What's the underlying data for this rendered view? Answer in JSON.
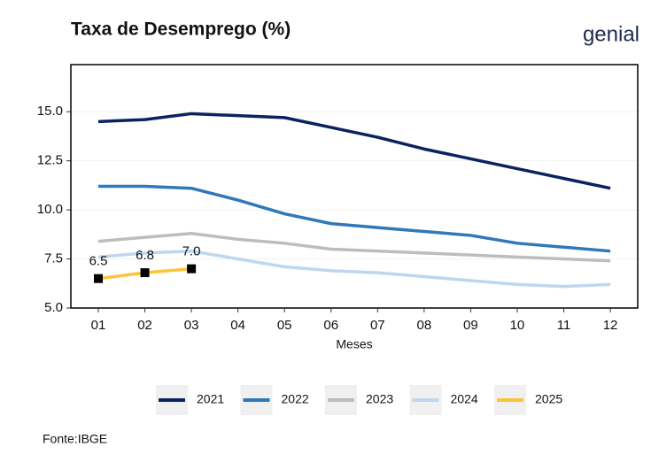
{
  "chart_data": {
    "type": "line",
    "title": "Taxa de Desemprego (%)",
    "logo": "genial",
    "x_label": "Meses",
    "source": "Fonte:IBGE",
    "categories": [
      "01",
      "02",
      "03",
      "04",
      "05",
      "06",
      "07",
      "08",
      "09",
      "10",
      "11",
      "12"
    ],
    "ylim": [
      5,
      17.4
    ],
    "yticks": [
      {
        "value": 5,
        "label": "5.0"
      },
      7.5,
      {
        "value": 10,
        "label": "10.0"
      },
      12.5,
      {
        "value": 15,
        "label": "15.0"
      }
    ],
    "grid": true,
    "legend": "bottom",
    "series": [
      {
        "name": "2021",
        "color": "#0b2260",
        "values": [
          14.5,
          14.6,
          14.9,
          14.8,
          14.7,
          14.2,
          13.7,
          13.1,
          12.6,
          12.1,
          11.6,
          11.1
        ]
      },
      {
        "name": "2022",
        "color": "#2f78b9",
        "values": [
          11.2,
          11.2,
          11.1,
          10.5,
          9.8,
          9.3,
          9.1,
          8.9,
          8.7,
          8.3,
          8.1,
          7.9
        ]
      },
      {
        "name": "2023",
        "color": "#bdbdbd",
        "values": [
          8.4,
          8.6,
          8.8,
          8.5,
          8.3,
          8.0,
          7.9,
          7.8,
          7.7,
          7.6,
          7.5,
          7.4
        ]
      },
      {
        "name": "2024",
        "color": "#bcd7ee",
        "values": [
          7.6,
          7.8,
          7.9,
          7.5,
          7.1,
          6.9,
          6.8,
          6.6,
          6.4,
          6.2,
          6.1,
          6.2
        ]
      },
      {
        "name": "2025",
        "color": "#fcc439",
        "marker": "square",
        "values": [
          6.5,
          6.8,
          7.0,
          null,
          null,
          null,
          null,
          null,
          null,
          null,
          null,
          null
        ],
        "value_labels": [
          "6.5",
          "6.8",
          "7.0"
        ]
      }
    ]
  }
}
